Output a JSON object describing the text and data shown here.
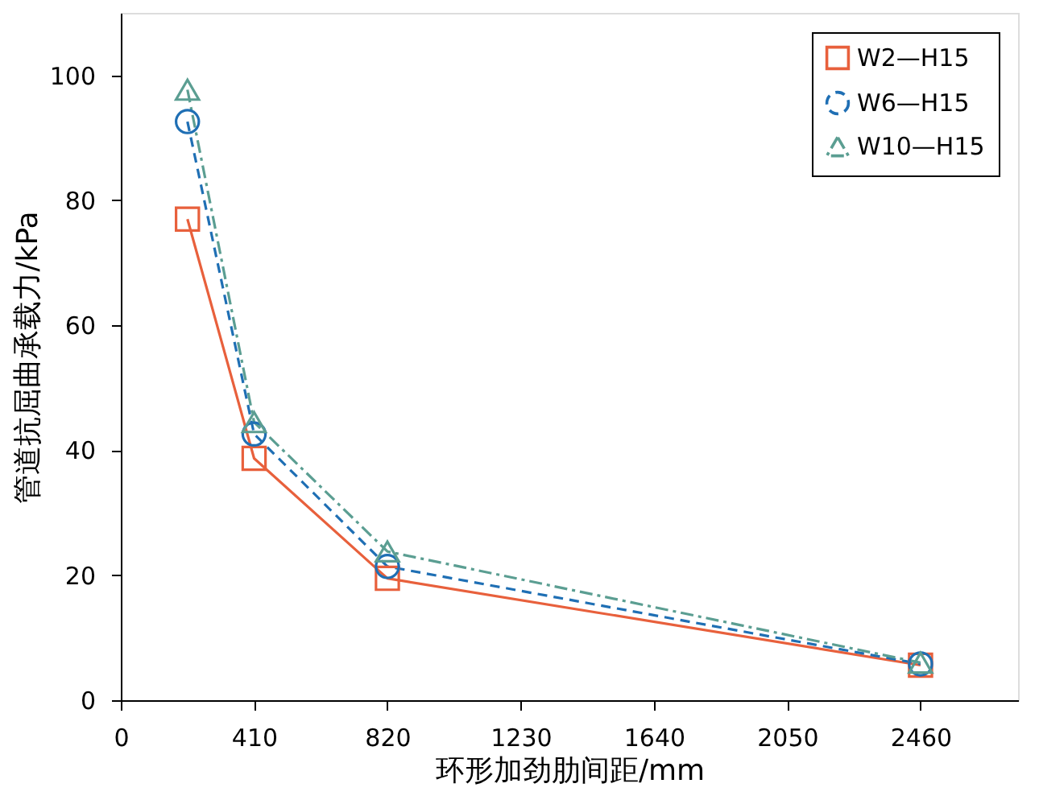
{
  "chart_data": {
    "type": "line",
    "xlabel": "环形加劲肋间距/mm",
    "ylabel": "管道抗屈曲承载力/kPa",
    "x": [
      205,
      410,
      820,
      2460
    ],
    "xlim": [
      0,
      2760
    ],
    "xticks": [
      0,
      410,
      820,
      1230,
      1640,
      2050,
      2460
    ],
    "ylim": [
      0,
      110
    ],
    "yticks": [
      0,
      20,
      40,
      60,
      80,
      100
    ],
    "grid": false,
    "legend": "top right",
    "series": [
      {
        "name": "W2—H15",
        "color": "#e8603c",
        "marker": "square",
        "line_style": "solid",
        "values": [
          77,
          38.7,
          19.5,
          5.6
        ]
      },
      {
        "name": "W6—H15",
        "color": "#1f6fb4",
        "marker": "circle",
        "line_style": "dashed",
        "values": [
          92.6,
          42.6,
          21.4,
          5.8
        ]
      },
      {
        "name": "W10—H15",
        "color": "#5b9e92",
        "marker": "triangle",
        "line_style": "dashdot",
        "values": [
          97.7,
          44.5,
          23.8,
          6
        ]
      }
    ]
  }
}
